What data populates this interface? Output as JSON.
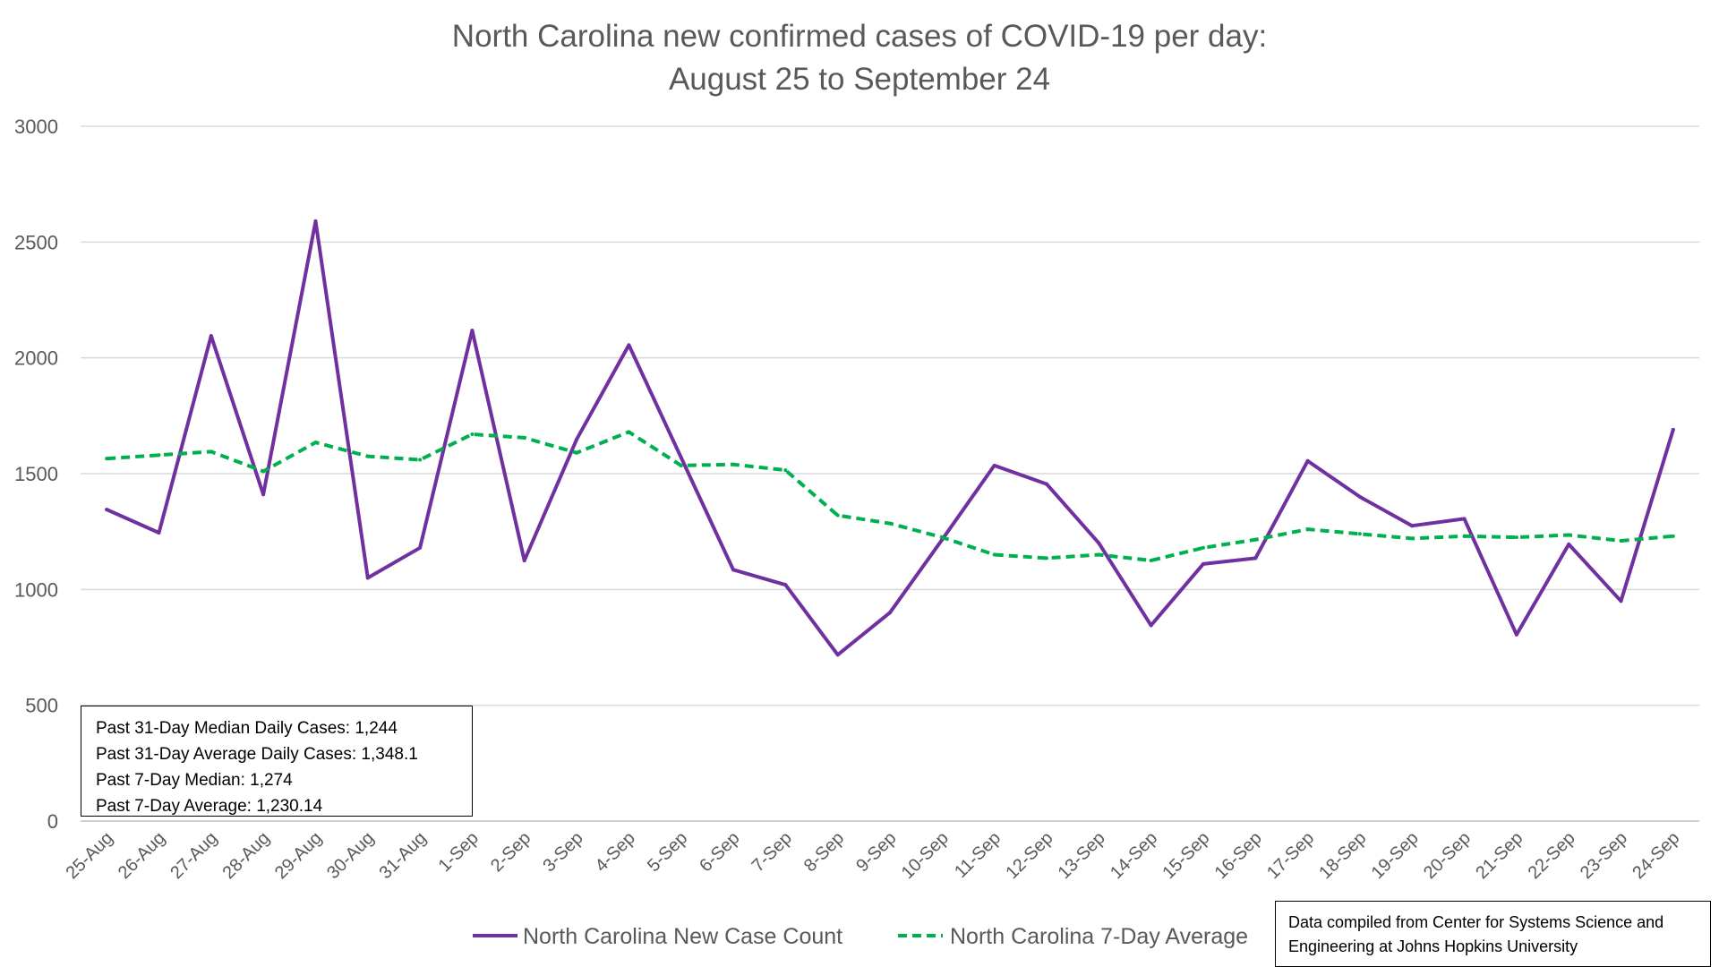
{
  "chart_data": {
    "type": "line",
    "title_line1": "North Carolina new confirmed cases of COVID-19 per day:",
    "title_line2": "August 25 to September 24",
    "xlabel": "",
    "ylabel": "",
    "ylim": [
      0,
      3000
    ],
    "yticks": [
      0,
      500,
      1000,
      1500,
      2000,
      2500,
      3000
    ],
    "grid": true,
    "legend_position": "bottom",
    "categories": [
      "25-Aug",
      "26-Aug",
      "27-Aug",
      "28-Aug",
      "29-Aug",
      "30-Aug",
      "31-Aug",
      "1-Sep",
      "2-Sep",
      "3-Sep",
      "4-Sep",
      "5-Sep",
      "6-Sep",
      "7-Sep",
      "8-Sep",
      "9-Sep",
      "10-Sep",
      "11-Sep",
      "12-Sep",
      "13-Sep",
      "14-Sep",
      "15-Sep",
      "16-Sep",
      "17-Sep",
      "18-Sep",
      "19-Sep",
      "20-Sep",
      "21-Sep",
      "22-Sep",
      "23-Sep",
      "24-Sep"
    ],
    "series": [
      {
        "name": "North Carolina New Case Count",
        "color": "#7030A0",
        "style": "solid",
        "values": [
          1345,
          1245,
          2095,
          1410,
          2590,
          1050,
          1180,
          2118,
          1125,
          1648,
          2055,
          1570,
          1085,
          1020,
          718,
          900,
          1215,
          1535,
          1455,
          1200,
          845,
          1110,
          1135,
          1555,
          1400,
          1275,
          1305,
          805,
          1195,
          950,
          1690
        ]
      },
      {
        "name": "North Carolina 7-Day Average",
        "color": "#00B050",
        "style": "dashed",
        "values": [
          1565,
          1580,
          1595,
          1510,
          1635,
          1575,
          1560,
          1670,
          1655,
          1590,
          1680,
          1535,
          1540,
          1515,
          1320,
          1285,
          1225,
          1150,
          1135,
          1150,
          1125,
          1180,
          1215,
          1260,
          1240,
          1220,
          1230,
          1225,
          1235,
          1210,
          1230
        ]
      }
    ]
  },
  "stats_box": {
    "line1": "Past 31-Day Median Daily Cases: 1,244",
    "line2": "Past 31-Day Average Daily Cases: 1,348.1",
    "line3": "Past 7-Day Median: 1,274",
    "line4": "Past 7-Day Average: 1,230.14"
  },
  "source_box": {
    "line1": "Data compiled from Center for Systems Science and",
    "line2": "Engineering at Johns Hopkins University"
  }
}
